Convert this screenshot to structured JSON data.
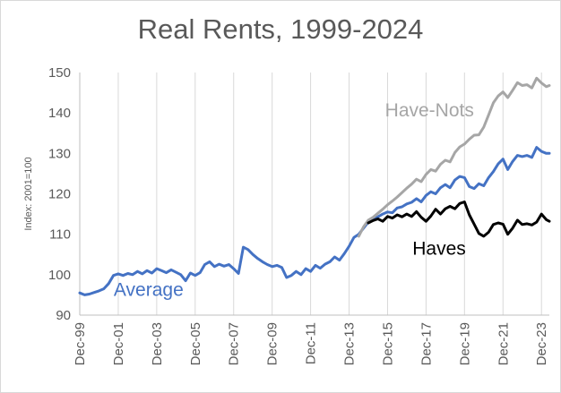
{
  "chart_data": {
    "type": "line",
    "title": "Real Rents, 1999-2024",
    "ylabel": "Index: 2001=100",
    "xlabel": "",
    "ylim": [
      90,
      150
    ],
    "yticks": [
      90,
      100,
      110,
      120,
      130,
      140,
      150
    ],
    "xlim": [
      1999.92,
      2024.33
    ],
    "xticks": [
      {
        "label": "Dec-99",
        "x": 1999.92
      },
      {
        "label": "Dec-01",
        "x": 2001.92
      },
      {
        "label": "Dec-03",
        "x": 2003.92
      },
      {
        "label": "Dec-05",
        "x": 2005.92
      },
      {
        "label": "Dec-07",
        "x": 2007.92
      },
      {
        "label": "Dec-09",
        "x": 2009.92
      },
      {
        "label": "Dec-11",
        "x": 2011.92
      },
      {
        "label": "Dec-13",
        "x": 2013.92
      },
      {
        "label": "Dec-15",
        "x": 2015.92
      },
      {
        "label": "Dec-17",
        "x": 2017.92
      },
      {
        "label": "Dec-19",
        "x": 2019.92
      },
      {
        "label": "Dec-21",
        "x": 2021.92
      },
      {
        "label": "Dec-23",
        "x": 2023.92
      }
    ],
    "grid": {
      "vertical": true,
      "horizontal": false
    },
    "series": [
      {
        "name": "Average",
        "color": "#4472c4",
        "points": [
          [
            1999.92,
            95.5
          ],
          [
            2000.17,
            95.0
          ],
          [
            2000.42,
            95.2
          ],
          [
            2000.67,
            95.6
          ],
          [
            2000.92,
            96.0
          ],
          [
            2001.17,
            96.5
          ],
          [
            2001.42,
            97.8
          ],
          [
            2001.67,
            99.8
          ],
          [
            2001.92,
            100.2
          ],
          [
            2002.17,
            99.8
          ],
          [
            2002.42,
            100.3
          ],
          [
            2002.67,
            100.0
          ],
          [
            2002.92,
            100.8
          ],
          [
            2003.17,
            100.2
          ],
          [
            2003.42,
            101.0
          ],
          [
            2003.67,
            100.4
          ],
          [
            2003.92,
            101.5
          ],
          [
            2004.17,
            101.0
          ],
          [
            2004.42,
            100.5
          ],
          [
            2004.67,
            101.2
          ],
          [
            2004.92,
            100.6
          ],
          [
            2005.17,
            100.0
          ],
          [
            2005.42,
            98.5
          ],
          [
            2005.67,
            100.4
          ],
          [
            2005.92,
            99.8
          ],
          [
            2006.17,
            100.5
          ],
          [
            2006.42,
            102.5
          ],
          [
            2006.67,
            103.2
          ],
          [
            2006.92,
            102.0
          ],
          [
            2007.17,
            102.6
          ],
          [
            2007.42,
            102.1
          ],
          [
            2007.67,
            102.5
          ],
          [
            2007.92,
            101.5
          ],
          [
            2008.17,
            100.3
          ],
          [
            2008.42,
            106.8
          ],
          [
            2008.67,
            106.2
          ],
          [
            2008.92,
            105.0
          ],
          [
            2009.17,
            104.0
          ],
          [
            2009.42,
            103.2
          ],
          [
            2009.67,
            102.5
          ],
          [
            2009.92,
            102.0
          ],
          [
            2010.17,
            102.3
          ],
          [
            2010.42,
            101.8
          ],
          [
            2010.67,
            99.3
          ],
          [
            2010.92,
            99.8
          ],
          [
            2011.17,
            100.8
          ],
          [
            2011.42,
            100.0
          ],
          [
            2011.67,
            101.5
          ],
          [
            2011.92,
            100.8
          ],
          [
            2012.17,
            102.3
          ],
          [
            2012.42,
            101.6
          ],
          [
            2012.67,
            102.6
          ],
          [
            2012.92,
            103.2
          ],
          [
            2013.17,
            104.4
          ],
          [
            2013.42,
            103.6
          ],
          [
            2013.67,
            105.2
          ],
          [
            2013.92,
            107.0
          ],
          [
            2014.17,
            109.2
          ],
          [
            2014.42,
            110.0
          ],
          [
            2014.67,
            111.5
          ],
          [
            2014.92,
            113.0
          ],
          [
            2015.17,
            113.6
          ],
          [
            2015.42,
            114.3
          ],
          [
            2015.67,
            115.0
          ],
          [
            2015.92,
            115.5
          ],
          [
            2016.17,
            115.3
          ],
          [
            2016.42,
            116.5
          ],
          [
            2016.67,
            116.8
          ],
          [
            2016.92,
            117.5
          ],
          [
            2017.17,
            117.9
          ],
          [
            2017.42,
            118.8
          ],
          [
            2017.67,
            118.0
          ],
          [
            2017.92,
            119.6
          ],
          [
            2018.17,
            120.5
          ],
          [
            2018.42,
            120.0
          ],
          [
            2018.67,
            121.5
          ],
          [
            2018.92,
            122.3
          ],
          [
            2019.17,
            121.5
          ],
          [
            2019.42,
            123.4
          ],
          [
            2019.67,
            124.3
          ],
          [
            2019.92,
            124.0
          ],
          [
            2020.17,
            121.8
          ],
          [
            2020.42,
            121.3
          ],
          [
            2020.67,
            122.5
          ],
          [
            2020.92,
            122.0
          ],
          [
            2021.17,
            124.0
          ],
          [
            2021.42,
            125.5
          ],
          [
            2021.67,
            127.4
          ],
          [
            2021.92,
            128.6
          ],
          [
            2022.17,
            126.0
          ],
          [
            2022.42,
            128.0
          ],
          [
            2022.67,
            129.5
          ],
          [
            2022.92,
            129.2
          ],
          [
            2023.17,
            129.5
          ],
          [
            2023.42,
            129.0
          ],
          [
            2023.67,
            131.5
          ],
          [
            2023.92,
            130.5
          ],
          [
            2024.17,
            130.0
          ],
          [
            2024.33,
            130.0
          ]
        ]
      },
      {
        "name": "Have-Nots",
        "color": "#a6a6a6",
        "points": [
          [
            2014.42,
            109.5
          ],
          [
            2014.67,
            111.8
          ],
          [
            2014.92,
            113.5
          ],
          [
            2015.17,
            114.2
          ],
          [
            2015.42,
            115.2
          ],
          [
            2015.67,
            116.2
          ],
          [
            2015.92,
            117.3
          ],
          [
            2016.17,
            118.2
          ],
          [
            2016.42,
            119.2
          ],
          [
            2016.67,
            120.3
          ],
          [
            2016.92,
            121.4
          ],
          [
            2017.17,
            122.4
          ],
          [
            2017.42,
            123.6
          ],
          [
            2017.67,
            123.0
          ],
          [
            2017.92,
            124.8
          ],
          [
            2018.17,
            126.0
          ],
          [
            2018.42,
            125.6
          ],
          [
            2018.67,
            127.3
          ],
          [
            2018.92,
            128.3
          ],
          [
            2019.17,
            127.9
          ],
          [
            2019.42,
            130.2
          ],
          [
            2019.67,
            131.6
          ],
          [
            2019.92,
            132.3
          ],
          [
            2020.17,
            133.5
          ],
          [
            2020.42,
            134.5
          ],
          [
            2020.67,
            134.6
          ],
          [
            2020.92,
            136.5
          ],
          [
            2021.17,
            139.5
          ],
          [
            2021.42,
            142.5
          ],
          [
            2021.67,
            144.2
          ],
          [
            2021.92,
            145.2
          ],
          [
            2022.17,
            143.8
          ],
          [
            2022.42,
            145.6
          ],
          [
            2022.67,
            147.5
          ],
          [
            2022.92,
            146.8
          ],
          [
            2023.17,
            147.0
          ],
          [
            2023.42,
            146.2
          ],
          [
            2023.67,
            148.6
          ],
          [
            2023.92,
            147.4
          ],
          [
            2024.17,
            146.5
          ],
          [
            2024.33,
            146.8
          ]
        ]
      },
      {
        "name": "Haves",
        "color": "#000000",
        "points": [
          [
            2014.92,
            112.8
          ],
          [
            2015.17,
            113.4
          ],
          [
            2015.42,
            113.8
          ],
          [
            2015.67,
            113.2
          ],
          [
            2015.92,
            114.4
          ],
          [
            2016.17,
            114.0
          ],
          [
            2016.42,
            114.8
          ],
          [
            2016.67,
            114.3
          ],
          [
            2016.92,
            115.0
          ],
          [
            2017.17,
            114.4
          ],
          [
            2017.42,
            115.6
          ],
          [
            2017.67,
            114.2
          ],
          [
            2017.92,
            113.2
          ],
          [
            2018.17,
            114.5
          ],
          [
            2018.42,
            116.2
          ],
          [
            2018.67,
            115.0
          ],
          [
            2018.92,
            116.3
          ],
          [
            2019.17,
            116.9
          ],
          [
            2019.42,
            116.3
          ],
          [
            2019.67,
            117.6
          ],
          [
            2019.92,
            118.0
          ],
          [
            2020.17,
            114.8
          ],
          [
            2020.42,
            112.5
          ],
          [
            2020.67,
            110.2
          ],
          [
            2020.92,
            109.5
          ],
          [
            2021.17,
            110.5
          ],
          [
            2021.42,
            112.4
          ],
          [
            2021.67,
            112.8
          ],
          [
            2021.92,
            112.5
          ],
          [
            2022.17,
            110.0
          ],
          [
            2022.42,
            111.5
          ],
          [
            2022.67,
            113.5
          ],
          [
            2022.92,
            112.4
          ],
          [
            2023.17,
            112.6
          ],
          [
            2023.42,
            112.3
          ],
          [
            2023.67,
            113.0
          ],
          [
            2023.92,
            115.0
          ],
          [
            2024.17,
            113.6
          ],
          [
            2024.33,
            113.2
          ]
        ]
      }
    ],
    "annotations": [
      {
        "text": "Average",
        "x": 2003.5,
        "y": 94.8,
        "color": "#4472c4"
      },
      {
        "text": "Have-Nots",
        "x": 2018.1,
        "y": 139.2,
        "color": "#a6a6a6"
      },
      {
        "text": "Haves",
        "x": 2018.6,
        "y": 104.9,
        "color": "#000000"
      }
    ]
  }
}
